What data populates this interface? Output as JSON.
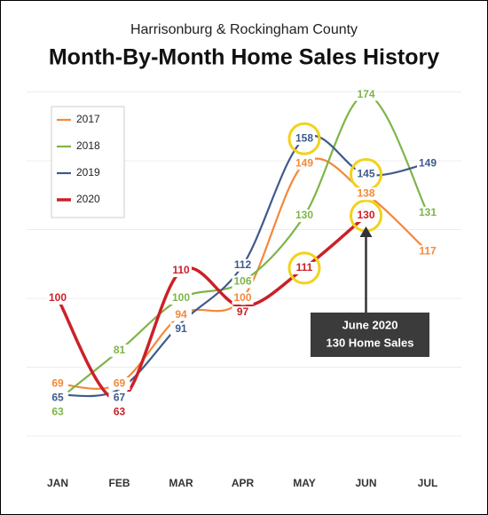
{
  "chart_data": {
    "type": "line",
    "subtitle": "Harrisonburg & Rockingham County",
    "title": "Month-By-Month Home Sales History",
    "categories": [
      "JAN",
      "FEB",
      "MAR",
      "APR",
      "MAY",
      "JUN",
      "JUL"
    ],
    "series": [
      {
        "name": "2017",
        "color": "#f4883a",
        "values": [
          69,
          69,
          94,
          100,
          149,
          138,
          117
        ]
      },
      {
        "name": "2018",
        "color": "#7db548",
        "values": [
          63,
          81,
          100,
          106,
          130,
          174,
          131
        ]
      },
      {
        "name": "2019",
        "color": "#3f5a8a",
        "values": [
          65,
          67,
          91,
          112,
          158,
          145,
          149
        ]
      },
      {
        "name": "2020",
        "color": "#cc2027",
        "values": [
          100,
          63,
          110,
          97,
          111,
          130,
          null
        ]
      }
    ],
    "ylim": [
      40,
      180
    ],
    "yticks": [
      50,
      75,
      100,
      125,
      150,
      175
    ],
    "grid": true,
    "legend": "upper left",
    "highlights": [
      {
        "series": 2,
        "index": 4
      },
      {
        "series": 2,
        "index": 5
      },
      {
        "series": 3,
        "index": 4
      },
      {
        "series": 3,
        "index": 5
      }
    ],
    "annotation": {
      "lines": [
        "June 2020",
        "130 Home Sales"
      ],
      "series": 3,
      "index": 5
    }
  }
}
